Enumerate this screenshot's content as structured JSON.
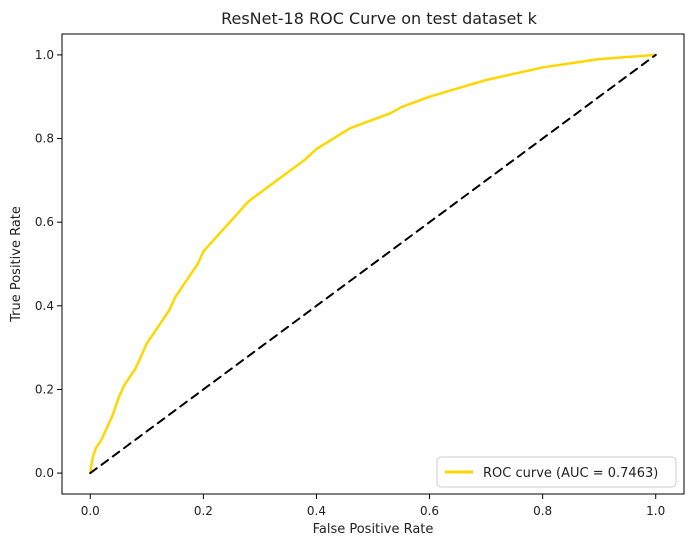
{
  "chart_data": {
    "type": "line",
    "title": "ResNet-18 ROC Curve on test dataset k",
    "xlabel": "False Positive Rate",
    "ylabel": "True Positive Rate",
    "xlim": [
      -0.05,
      1.05
    ],
    "ylim": [
      -0.05,
      1.05
    ],
    "x_ticks": [
      0.0,
      0.2,
      0.4,
      0.6,
      0.8,
      1.0
    ],
    "y_ticks": [
      0.0,
      0.2,
      0.4,
      0.6,
      0.8,
      1.0
    ],
    "x_tick_labels": [
      "0.0",
      "0.2",
      "0.4",
      "0.6",
      "0.8",
      "1.0"
    ],
    "y_tick_labels": [
      "0.0",
      "0.2",
      "0.4",
      "0.6",
      "0.8",
      "1.0"
    ],
    "legend_position": "bottom-right",
    "grid": false,
    "series": [
      {
        "name": "ROC curve (AUC = 0.7463)",
        "color": "#FFD700",
        "style": "solid",
        "x": [
          0.0,
          0.002,
          0.005,
          0.01,
          0.015,
          0.02,
          0.03,
          0.04,
          0.05,
          0.06,
          0.07,
          0.08,
          0.09,
          0.1,
          0.12,
          0.14,
          0.15,
          0.17,
          0.19,
          0.2,
          0.22,
          0.24,
          0.26,
          0.28,
          0.3,
          0.33,
          0.36,
          0.38,
          0.4,
          0.43,
          0.46,
          0.5,
          0.53,
          0.55,
          0.6,
          0.65,
          0.7,
          0.75,
          0.8,
          0.85,
          0.9,
          0.95,
          1.0
        ],
        "y": [
          0.0,
          0.02,
          0.04,
          0.06,
          0.07,
          0.08,
          0.11,
          0.14,
          0.18,
          0.21,
          0.23,
          0.25,
          0.28,
          0.31,
          0.35,
          0.39,
          0.42,
          0.46,
          0.5,
          0.53,
          0.56,
          0.59,
          0.62,
          0.65,
          0.67,
          0.7,
          0.73,
          0.75,
          0.775,
          0.8,
          0.825,
          0.845,
          0.86,
          0.875,
          0.9,
          0.92,
          0.94,
          0.955,
          0.97,
          0.98,
          0.99,
          0.995,
          1.0
        ]
      },
      {
        "name": "",
        "color": "#000000",
        "style": "dashed",
        "x": [
          0.0,
          1.0
        ],
        "y": [
          0.0,
          1.0
        ]
      }
    ]
  }
}
